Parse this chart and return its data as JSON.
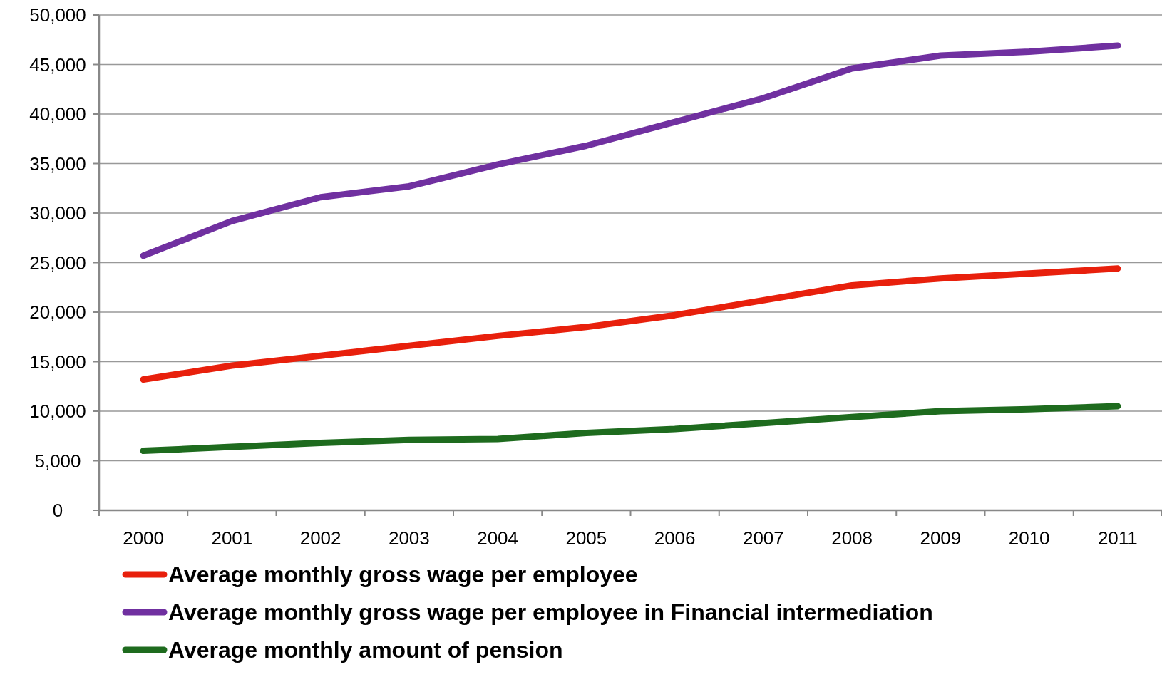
{
  "chart_data": {
    "type": "line",
    "categories": [
      "2000",
      "2001",
      "2002",
      "2003",
      "2004",
      "2005",
      "2006",
      "2007",
      "2008",
      "2009",
      "2010",
      "2011"
    ],
    "series": [
      {
        "name": "Average monthly gross wage per employee",
        "color": "#e8200c",
        "values": [
          13200,
          14600,
          15600,
          16600,
          17600,
          18500,
          19700,
          21200,
          22700,
          23400,
          23900,
          24400
        ]
      },
      {
        "name": "Average monthly gross wage per employee in Financial intermediation",
        "color": "#7030a0",
        "values": [
          25700,
          29200,
          31600,
          32700,
          34900,
          36800,
          39200,
          41600,
          44600,
          45900,
          46300,
          46900
        ]
      },
      {
        "name": "Average monthly amount of pension",
        "color": "#1e6b1e",
        "values": [
          6000,
          6400,
          6800,
          7100,
          7200,
          7800,
          8200,
          8800,
          9400,
          10000,
          10200,
          10500
        ]
      }
    ],
    "ylim": [
      0,
      50000
    ],
    "yticks": [
      {
        "value": 0,
        "label": "0"
      },
      {
        "value": 5000,
        "label": "5,000"
      },
      {
        "value": 10000,
        "label": "10,000"
      },
      {
        "value": 15000,
        "label": "15,000"
      },
      {
        "value": 20000,
        "label": "20,000"
      },
      {
        "value": 25000,
        "label": "25,000"
      },
      {
        "value": 30000,
        "label": "30,000"
      },
      {
        "value": 35000,
        "label": "35,000"
      },
      {
        "value": 40000,
        "label": "40,000"
      },
      {
        "value": 45000,
        "label": "45,000"
      },
      {
        "value": 50000,
        "label": "50,000"
      }
    ],
    "grid": "y",
    "legend": "bottom left",
    "marker": "none",
    "line_style": "solid"
  }
}
